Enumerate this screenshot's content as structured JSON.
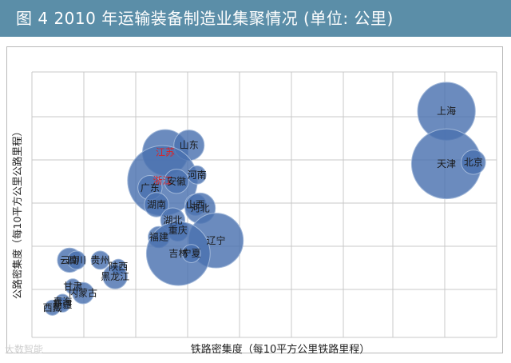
{
  "header": {
    "title": "图 4  2010 年运输装备制造业集聚情况 (单位: 公里)",
    "background": "#5b8ea8"
  },
  "watermark": "大数智能",
  "chart_data": {
    "type": "scatter",
    "title": "",
    "xlabel": "铁路密集度（每10平方公里铁路里程）",
    "ylabel": "公路密集度（每10平方公里公路里程）",
    "xlim": [
      0,
      10
    ],
    "ylim": [
      0,
      10
    ],
    "grid": true,
    "bubble_color": "#4a72b0",
    "highlight_color": "#e02020",
    "points": [
      {
        "label": "上海",
        "x": 8.92,
        "y": 8.52,
        "size": 0.38
      },
      {
        "label": "天津",
        "x": 8.92,
        "y": 6.54,
        "size": 0.46
      },
      {
        "label": "北京",
        "x": 9.5,
        "y": 6.6,
        "size": 0.16
      },
      {
        "label": "江苏",
        "x": 2.87,
        "y": 6.97,
        "size": 0.3,
        "highlight": true
      },
      {
        "label": "山东",
        "x": 3.38,
        "y": 7.24,
        "size": 0.2
      },
      {
        "label": "浙江",
        "x": 2.81,
        "y": 5.91,
        "size": 0.46,
        "highlight": true
      },
      {
        "label": "安徽",
        "x": 3.11,
        "y": 5.88,
        "size": 0.16
      },
      {
        "label": "河南",
        "x": 3.55,
        "y": 6.12,
        "size": 0.12
      },
      {
        "label": "广东",
        "x": 2.54,
        "y": 5.64,
        "size": 0.16
      },
      {
        "label": "湖南",
        "x": 2.68,
        "y": 5.0,
        "size": 0.16
      },
      {
        "label": "山西",
        "x": 3.52,
        "y": 5.0,
        "size": 0.14
      },
      {
        "label": "河北",
        "x": 3.62,
        "y": 4.87,
        "size": 0.2
      },
      {
        "label": "湖北",
        "x": 3.03,
        "y": 4.42,
        "size": 0.16
      },
      {
        "label": "重庆",
        "x": 3.14,
        "y": 4.03,
        "size": 0.14
      },
      {
        "label": "福建",
        "x": 2.73,
        "y": 3.78,
        "size": 0.14
      },
      {
        "label": "辽宁",
        "x": 3.96,
        "y": 3.65,
        "size": 0.36
      },
      {
        "label": "吉林",
        "x": 3.15,
        "y": 3.16,
        "size": 0.42
      },
      {
        "label": "宁夏",
        "x": 3.43,
        "y": 3.16,
        "size": 0.12
      },
      {
        "label": "云南",
        "x": 0.81,
        "y": 2.91,
        "size": 0.16
      },
      {
        "label": "四川",
        "x": 0.96,
        "y": 2.91,
        "size": 0.12
      },
      {
        "label": "贵州",
        "x": 1.47,
        "y": 2.91,
        "size": 0.12
      },
      {
        "label": "陕西",
        "x": 1.86,
        "y": 2.66,
        "size": 0.1
      },
      {
        "label": "黑龙江",
        "x": 1.79,
        "y": 2.29,
        "size": 0.16
      },
      {
        "label": "甘肃",
        "x": 0.88,
        "y": 1.92,
        "size": 0.1
      },
      {
        "label": "内蒙古",
        "x": 1.1,
        "y": 1.67,
        "size": 0.14
      },
      {
        "label": "青海",
        "x": 0.66,
        "y": 1.34,
        "size": 0.1
      },
      {
        "label": "新疆",
        "x": 0.66,
        "y": 1.24,
        "size": 0.1
      },
      {
        "label": "西藏",
        "x": 0.44,
        "y": 1.12,
        "size": 0.1
      }
    ]
  }
}
